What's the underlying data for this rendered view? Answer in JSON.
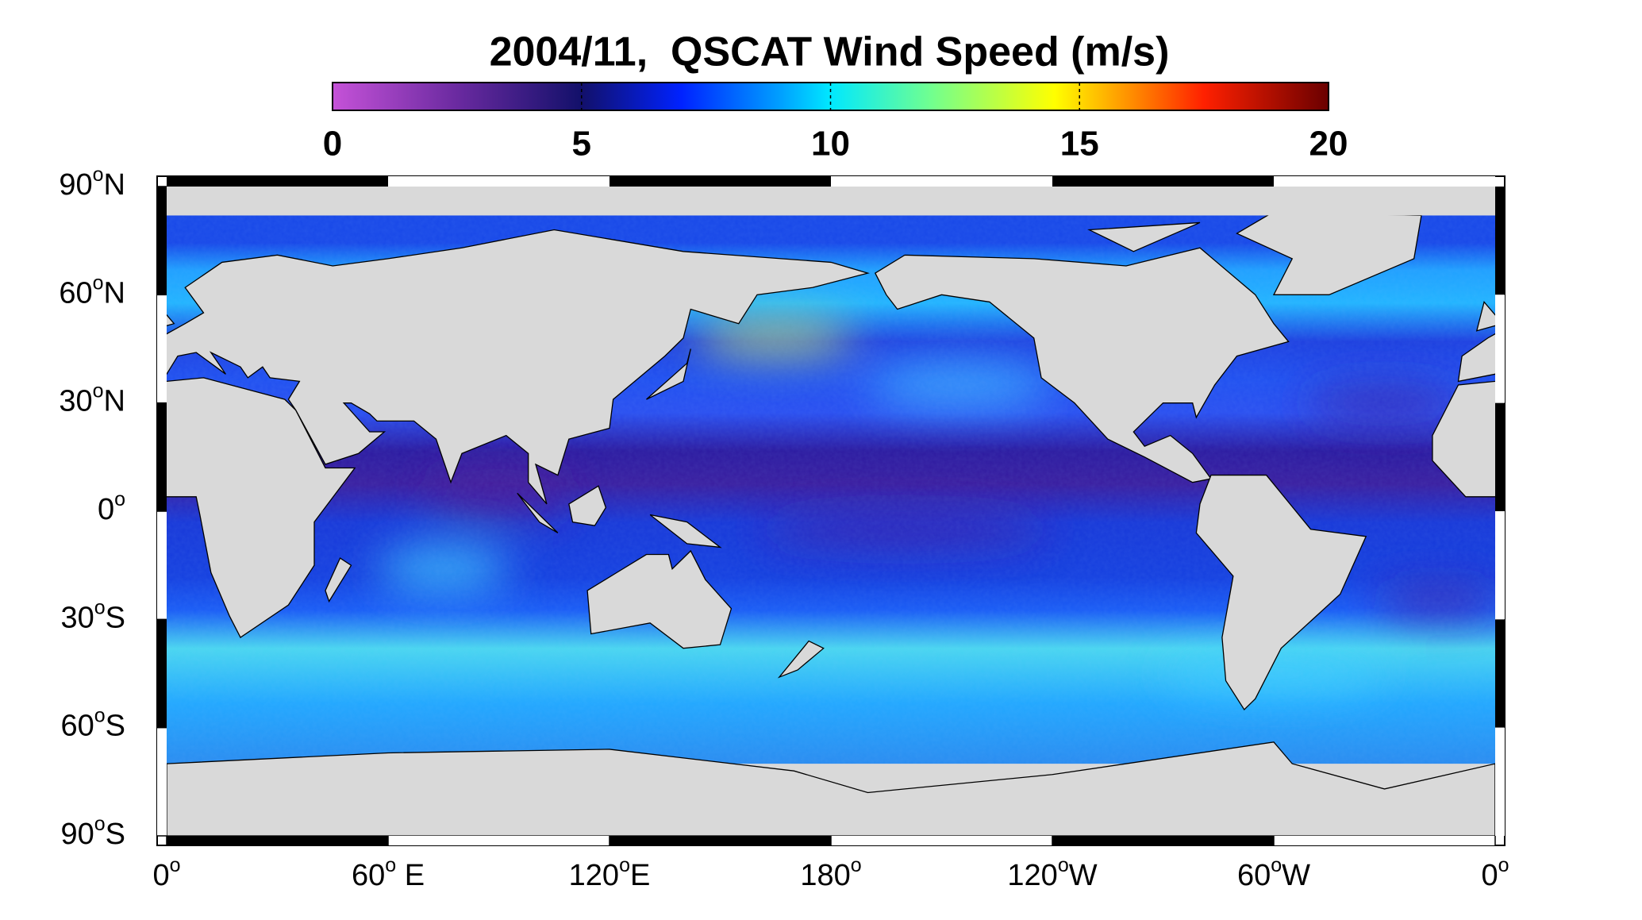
{
  "title": "2004/11,  QSCAT Wind Speed (m/s)",
  "colorbar": {
    "clim": [
      0,
      20
    ],
    "ticks": [
      0,
      5,
      10,
      15,
      20
    ],
    "colormap": [
      [
        0,
        "#c552d8"
      ],
      [
        2.5,
        "#6a2aa0"
      ],
      [
        5,
        "#12106a"
      ],
      [
        7,
        "#0022ff"
      ],
      [
        9,
        "#00a0ff"
      ],
      [
        10,
        "#00e8ff"
      ],
      [
        12,
        "#70ff90"
      ],
      [
        14.5,
        "#ffff00"
      ],
      [
        16,
        "#ff9000"
      ],
      [
        17.5,
        "#ff2000"
      ],
      [
        20,
        "#6a0000"
      ]
    ]
  },
  "map": {
    "lonlim": [
      0,
      360
    ],
    "latlim": [
      -90,
      90
    ],
    "lon_ticks": [
      {
        "value": 0,
        "label": [
          "0",
          "o"
        ]
      },
      {
        "value": 60,
        "label": [
          "60",
          "o",
          " E"
        ]
      },
      {
        "value": 120,
        "label": [
          "120",
          "o",
          "E"
        ]
      },
      {
        "value": 180,
        "label": [
          "180",
          "o"
        ]
      },
      {
        "value": 240,
        "label": [
          "120",
          "o",
          "W"
        ]
      },
      {
        "value": 300,
        "label": [
          "60",
          "o",
          "W"
        ]
      },
      {
        "value": 360,
        "label": [
          "0",
          "o"
        ]
      }
    ],
    "lat_ticks": [
      {
        "value": 90,
        "label": [
          "90",
          "o",
          "N"
        ]
      },
      {
        "value": 60,
        "label": [
          "60",
          "o",
          "N"
        ]
      },
      {
        "value": 30,
        "label": [
          "30",
          "o",
          "N"
        ]
      },
      {
        "value": 0,
        "label": [
          "0",
          "o"
        ]
      },
      {
        "value": -30,
        "label": [
          "30",
          "o",
          "S"
        ]
      },
      {
        "value": -60,
        "label": [
          "60",
          "o",
          "S"
        ]
      },
      {
        "value": -90,
        "label": [
          "90",
          "o",
          "S"
        ]
      }
    ]
  }
}
